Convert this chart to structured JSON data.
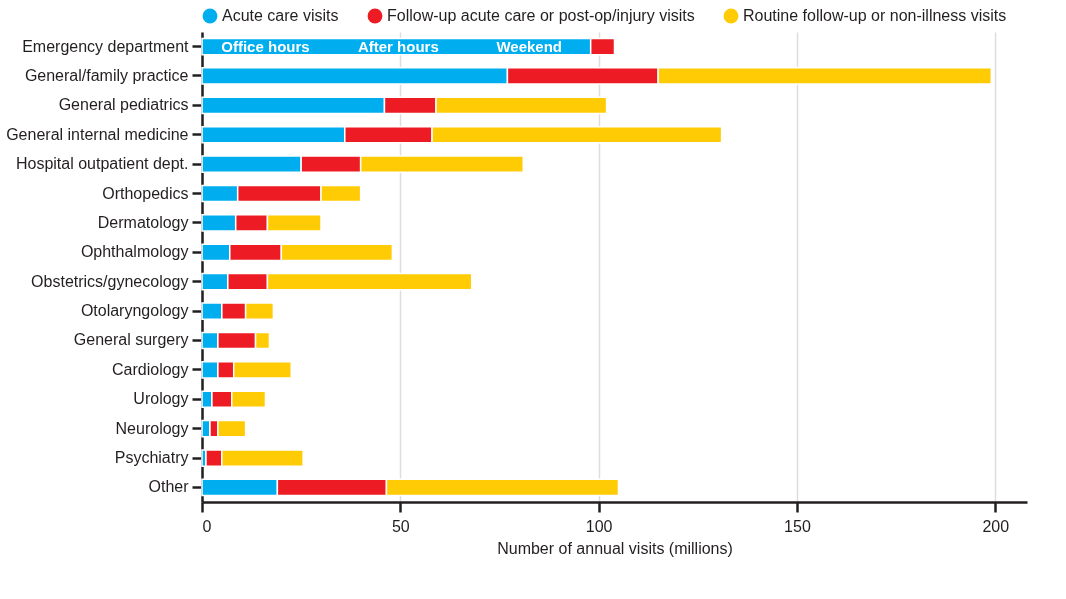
{
  "chart_data": {
    "type": "bar",
    "orientation": "horizontal",
    "stacked": true,
    "xlabel": "Number of annual visits (millions)",
    "categories": [
      "Emergency department",
      "General/family practice",
      "General pediatrics",
      "General internal medicine",
      "Hospital outpatient dept.",
      "Orthopedics",
      "Dermatology",
      "Ophthalmology",
      "Obstetrics/gynecology",
      "Otolaryngology",
      "General surgery",
      "Cardiology",
      "Urology",
      "Neurology",
      "Psychiatry",
      "Other"
    ],
    "series": [
      {
        "name": "Acute care visits",
        "color": "#00aeef",
        "values": [
          98,
          77,
          46,
          36,
          25,
          9,
          8.5,
          7,
          6.5,
          5,
          4,
          4,
          2.5,
          2,
          1,
          19
        ]
      },
      {
        "name": "Follow-up acute care or post-op/injury visits",
        "color": "#ed1c24",
        "values": [
          6,
          38,
          13,
          22,
          15,
          21,
          8,
          13,
          10,
          6,
          9.5,
          4,
          5,
          2,
          4,
          27.5
        ]
      },
      {
        "name": "Routine follow-up or non-illness visits",
        "color": "#ffcb05",
        "values": [
          null,
          84,
          43,
          73,
          41,
          10,
          13.5,
          28,
          51.5,
          7,
          3.5,
          14.5,
          8.5,
          7,
          20.5,
          58.5
        ]
      }
    ],
    "annotations": [
      {
        "text": "Office hours",
        "x": 16,
        "y": "Emergency department"
      },
      {
        "text": "After hours",
        "x": 49.5,
        "y": "Emergency department"
      },
      {
        "text": "Weekend",
        "x": 82.5,
        "y": "Emergency department"
      }
    ],
    "xlim": [
      0,
      208
    ],
    "xticks": [
      0,
      50,
      100,
      150,
      200
    ],
    "grid": "x",
    "legend": "top"
  }
}
